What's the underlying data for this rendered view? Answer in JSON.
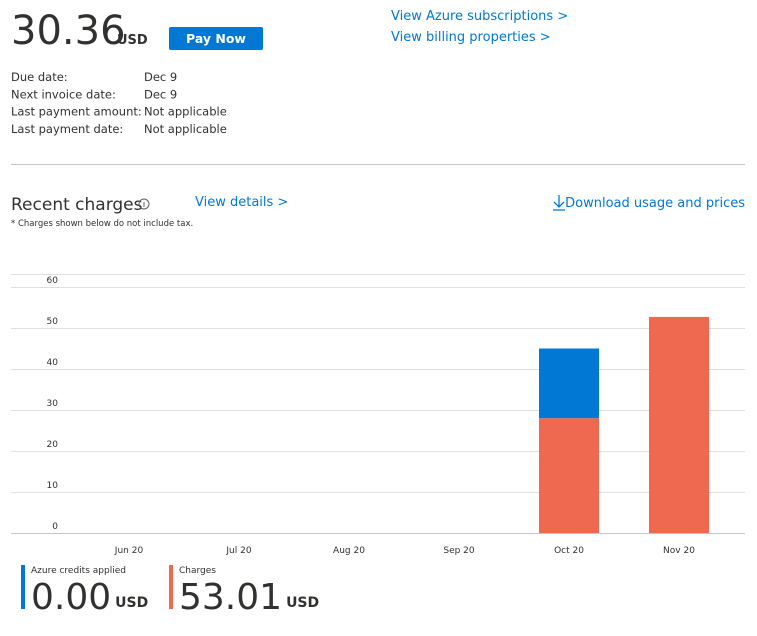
{
  "balance": {
    "amount": "30.36",
    "currency": "USD",
    "button": "Pay Now"
  },
  "links": [
    "View Azure subscriptions >",
    "View billing properties >"
  ],
  "details": [
    {
      "label": "Due date:",
      "value": "Dec 9"
    },
    {
      "label": "Next invoice date:",
      "value": "Dec 9"
    },
    {
      "label": "Last payment amount:",
      "value": "Not applicable"
    },
    {
      "label": "Last payment date:",
      "value": "Not applicable"
    }
  ],
  "recent": {
    "title": "Recent charges",
    "link": "View details >",
    "download": "Download usage and prices",
    "note": "* Charges shown below do not include tax."
  },
  "chart_data": {
    "type": "bar",
    "stacked": true,
    "categories": [
      "Jun 20",
      "Jul 20",
      "Aug 20",
      "Sep 20",
      "Oct 20",
      "Nov 20"
    ],
    "series": [
      {
        "name": "Charges",
        "color": "#ef6950",
        "values": [
          0,
          0,
          0,
          0,
          28,
          52.7
        ]
      },
      {
        "name": "Azure credits applied",
        "color": "#0078d4",
        "values": [
          0,
          0,
          0,
          0,
          17,
          0
        ]
      }
    ],
    "ylim": [
      0,
      60
    ],
    "yticks": [
      0,
      10,
      20,
      30,
      40,
      50,
      60
    ],
    "grid": true
  },
  "totals": [
    {
      "amount": "0.00",
      "currency": "USD"
    },
    {
      "amount": "53.01",
      "currency": "USD"
    }
  ]
}
